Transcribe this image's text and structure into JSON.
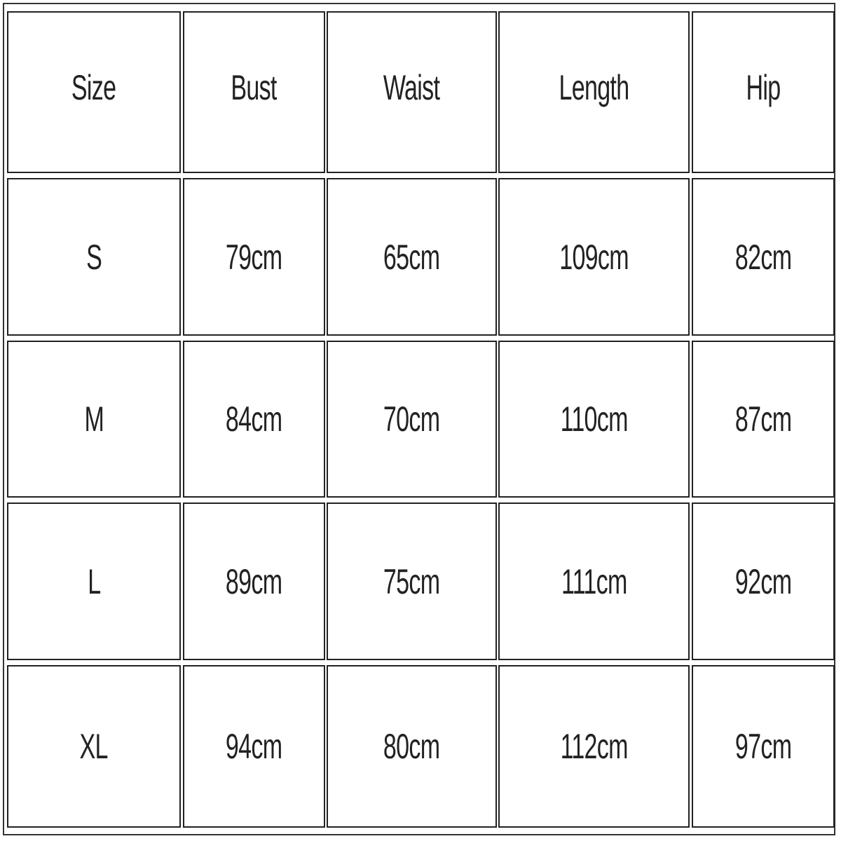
{
  "table": {
    "headers": [
      "Size",
      "Bust",
      "Waist",
      "Length",
      "Hip"
    ],
    "rows": [
      [
        "S",
        "79cm",
        "65cm",
        "109cm",
        "82cm"
      ],
      [
        "M",
        "84cm",
        "70cm",
        "110cm",
        "87cm"
      ],
      [
        "L",
        "89cm",
        "75cm",
        "111cm",
        "92cm"
      ],
      [
        "XL",
        "94cm",
        "80cm",
        "112cm",
        "97cm"
      ]
    ]
  }
}
